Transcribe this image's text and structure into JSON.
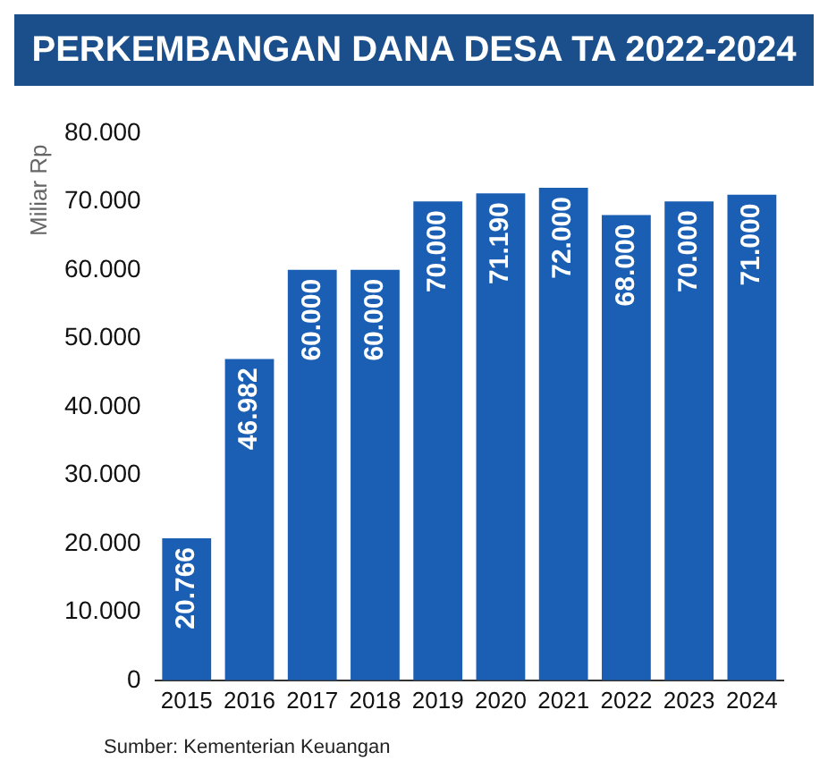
{
  "chart_data": {
    "type": "bar",
    "title": "PERKEMBANGAN DANA DESA TA 2022-2024",
    "ylabel": "Miliar Rp",
    "categories": [
      "2015",
      "2016",
      "2017",
      "2018",
      "2019",
      "2020",
      "2021",
      "2022",
      "2023",
      "2024"
    ],
    "values": [
      20766,
      46982,
      60000,
      60000,
      70000,
      71190,
      72000,
      68000,
      70000,
      71000
    ],
    "value_labels": [
      "20.766",
      "46.982",
      "60.000",
      "60.000",
      "70.000",
      "71.190",
      "72.000",
      "68.000",
      "70.000",
      "71.000"
    ],
    "color": "#1a5fb4",
    "ylim": [
      0,
      80000
    ],
    "yticks": [
      {
        "value": 0,
        "label": "0"
      },
      {
        "value": 10000,
        "label": "10.000"
      },
      {
        "value": 20000,
        "label": "20.000"
      },
      {
        "value": 30000,
        "label": "30.000"
      },
      {
        "value": 40000,
        "label": "40.000"
      },
      {
        "value": 50000,
        "label": "50.000"
      },
      {
        "value": 60000,
        "label": "60.000"
      },
      {
        "value": 70000,
        "label": "70.000"
      },
      {
        "value": 80000,
        "label": "80.000"
      }
    ],
    "grid": false,
    "legend": false,
    "annotations": [
      "Sumber: Kementerian Keuangan"
    ]
  }
}
